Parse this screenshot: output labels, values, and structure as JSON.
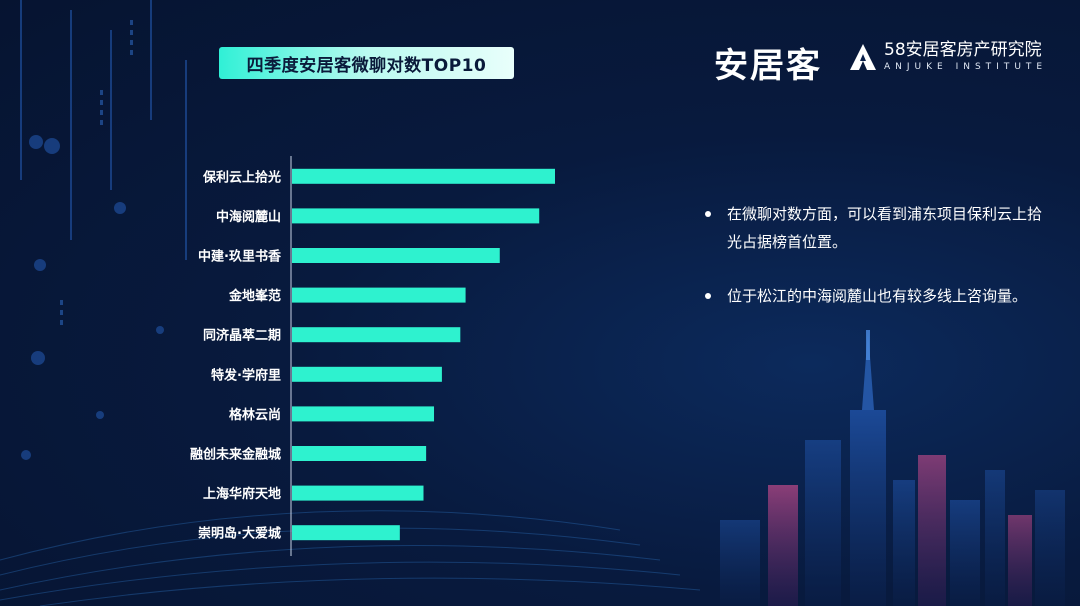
{
  "header": {
    "title": "四季度安居客微聊对数TOP10",
    "logo_brand": "安居客",
    "institute_cn": "58安居客房产研究院",
    "institute_en": "ANJUKE INSTITUTE"
  },
  "colors": {
    "bar": "#2ef2cf",
    "background": "#071838",
    "title_box": "#30f0d6"
  },
  "chart_data": {
    "type": "bar",
    "orientation": "horizontal",
    "title": "四季度安居客微聊对数TOP10",
    "categories": [
      "保利云上拾光",
      "中海阅麓山",
      "中建·玖里书香",
      "金地峯范",
      "同济晶萃二期",
      "特发·学府里",
      "格林云尚",
      "融创未来金融城",
      "上海华府天地",
      "崇明岛·大爱城"
    ],
    "values": [
      100,
      94,
      79,
      66,
      64,
      57,
      54,
      51,
      50,
      41
    ],
    "xlim": [
      0,
      100
    ],
    "value_axis_labels": false,
    "grid": false
  },
  "commentary": [
    "在微聊对数方面，可以看到浦东项目保利云上拾光占据榜首位置。",
    "位于松江的中海阅麓山也有较多线上咨询量。"
  ]
}
